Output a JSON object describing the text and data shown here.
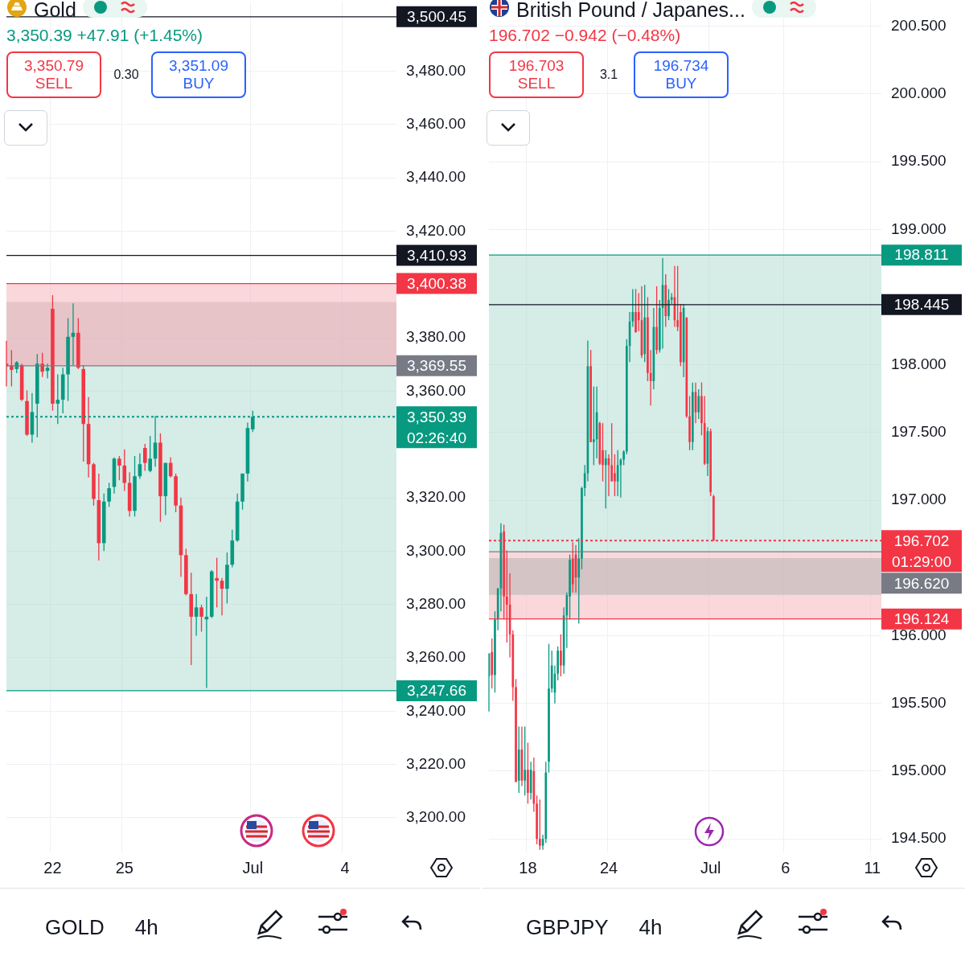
{
  "chart_data": [
    {
      "type": "candlestick",
      "title": "Gold",
      "subtitle": "3,350.39  +47.91 (+1.45%)",
      "categories": [
        null,
        null,
        null,
        null,
        null,
        null,
        null,
        null,
        null,
        "22",
        null,
        null,
        null,
        null,
        null,
        null,
        null,
        null,
        null,
        null,
        null,
        null,
        null,
        "25",
        null,
        null,
        null,
        null,
        null,
        null,
        null,
        null,
        null,
        null,
        null,
        null,
        null,
        null,
        null,
        null,
        null,
        null,
        null,
        null,
        null,
        null,
        null,
        null,
        "Jul",
        null,
        null,
        null,
        null,
        null,
        null,
        null,
        null,
        null,
        null,
        null,
        null,
        null,
        null,
        null,
        null,
        null,
        "4",
        null,
        null,
        null,
        null,
        null,
        null,
        null,
        null,
        null,
        null
      ],
      "ohlc": [
        [
          3370.3,
          3378.9,
          3361.8,
          3369.3
        ],
        [
          3369.6,
          3375.4,
          3361.8,
          3368.0
        ],
        [
          3368.3,
          3371.3,
          3366.8,
          3370.8
        ],
        [
          3369.8,
          3370.3,
          3356.3,
          3356.8
        ],
        [
          3356.3,
          3360.3,
          3343.2,
          3343.7
        ],
        [
          3343.7,
          3359.3,
          3340.7,
          3352.2
        ],
        [
          3355.3,
          3373.9,
          3342.7,
          3370.3
        ],
        [
          3370.3,
          3374.4,
          3365.3,
          3367.3
        ],
        [
          3367.6,
          3370.3,
          3364.8,
          3368.8
        ],
        [
          3390.9,
          3396.0,
          3352.7,
          3355.3
        ],
        [
          3355.3,
          3366.3,
          3347.7,
          3356.8
        ],
        [
          3356.8,
          3368.8,
          3351.7,
          3366.3
        ],
        [
          3366.3,
          3387.4,
          3356.3,
          3380.4
        ],
        [
          3380.4,
          3392.9,
          3369.8,
          3381.9
        ],
        [
          3381.9,
          3387.4,
          3368.3,
          3368.8
        ],
        [
          3368.3,
          3369.8,
          3333.6,
          3347.7
        ],
        [
          3347.7,
          3357.8,
          3327.6,
          3332.6
        ],
        [
          3332.6,
          3333.1,
          3317.1,
          3319.6
        ],
        [
          3319.1,
          3329.1,
          3296.5,
          3303.0
        ],
        [
          3303.0,
          3321.6,
          3300.0,
          3318.6
        ],
        [
          3318.6,
          3325.6,
          3316.6,
          3323.6
        ],
        [
          3324.1,
          3335.2,
          3321.6,
          3334.7
        ],
        [
          3334.7,
          3335.7,
          3326.6,
          3332.1
        ],
        [
          3332.1,
          3338.2,
          3322.6,
          3325.6
        ],
        [
          3325.6,
          3329.6,
          3313.0,
          3315.1
        ],
        [
          3315.1,
          3335.7,
          3313.0,
          3328.1
        ],
        [
          3328.1,
          3336.7,
          3327.1,
          3332.6
        ],
        [
          3338.7,
          3340.2,
          3330.1,
          3333.1
        ],
        [
          3330.1,
          3343.2,
          3329.6,
          3334.7
        ],
        [
          3334.7,
          3350.7,
          3331.6,
          3340.7
        ],
        [
          3340.7,
          3344.2,
          3311.0,
          3320.6
        ],
        [
          3320.6,
          3333.1,
          3313.5,
          3333.1
        ],
        [
          3333.1,
          3335.2,
          3327.6,
          3328.1
        ],
        [
          3328.1,
          3329.1,
          3314.6,
          3317.1
        ],
        [
          3317.1,
          3320.1,
          3290.4,
          3298.5
        ],
        [
          3298.5,
          3300.9,
          3283.4,
          3283.9
        ],
        [
          3283.9,
          3291.9,
          3257.3,
          3275.4
        ],
        [
          3275.4,
          3283.9,
          3268.3,
          3278.9
        ],
        [
          3278.9,
          3279.9,
          3269.8,
          3275.4
        ],
        [
          3274.4,
          3282.9,
          3248.7,
          3275.4
        ],
        [
          3275.4,
          3292.9,
          3274.9,
          3292.4
        ],
        [
          3289.9,
          3297.5,
          3278.9,
          3288.9
        ],
        [
          3288.9,
          3289.9,
          3275.9,
          3285.9
        ],
        [
          3285.9,
          3299.5,
          3280.4,
          3294.9
        ],
        [
          3294.9,
          3308.0,
          3293.9,
          3304.0
        ],
        [
          3304.0,
          3321.6,
          3303.5,
          3318.6
        ],
        [
          3318.6,
          3329.1,
          3315.6,
          3329.1
        ],
        [
          3329.1,
          3348.2,
          3326.1,
          3346.2
        ],
        [
          3345.7,
          3352.7,
          3344.7,
          3350.4
        ],
        null,
        null,
        null,
        null,
        null,
        null,
        null,
        null,
        null,
        null,
        null,
        null,
        null,
        null,
        null,
        null,
        null,
        null,
        null,
        null,
        null,
        null,
        null,
        null,
        null,
        null,
        null,
        null
      ],
      "colors": [
        "#f23645",
        "#f23645",
        "#089981",
        "#f23645",
        "#f23645",
        "#089981",
        "#089981",
        "#f23645",
        "#089981",
        "#f23645",
        "#089981",
        "#089981",
        "#089981",
        "#089981",
        "#f23645",
        "#f23645",
        "#f23645",
        "#f23645",
        "#f23645",
        "#089981",
        "#089981",
        "#089981",
        "#f23645",
        "#f23645",
        "#f23645",
        "#089981",
        "#089981",
        "#f23645",
        "#089981",
        "#089981",
        "#f23645",
        "#089981",
        "#f23645",
        "#f23645",
        "#f23645",
        "#f23645",
        "#f23645",
        "#089981",
        "#f23645",
        "#089981",
        "#089981",
        "#f23645",
        "#f23645",
        "#089981",
        "#089981",
        "#089981",
        "#089981",
        "#089981",
        "#089981",
        null,
        null,
        null,
        null,
        null,
        null,
        null,
        null,
        null,
        null,
        null,
        null,
        null,
        null,
        null,
        null,
        null,
        null,
        null,
        null,
        null,
        null,
        null,
        null,
        null,
        null,
        null,
        null
      ],
      "ylim": [
        3187,
        3506
      ],
      "yticks": [
        {
          "value": 3200,
          "label": "3,200.00"
        },
        {
          "value": 3220,
          "label": "3,220.00"
        },
        {
          "value": 3240,
          "label": "3,240.00"
        },
        {
          "value": 3260,
          "label": "3,260.00"
        },
        {
          "value": 3280,
          "label": "3,280.00"
        },
        {
          "value": 3300,
          "label": "3,300.00"
        },
        {
          "value": 3320,
          "label": "3,320.00"
        },
        {
          "value": 3360,
          "label": "3,360.00"
        },
        {
          "value": 3380,
          "label": "3,380.00"
        },
        {
          "value": 3420,
          "label": "3,420.00"
        },
        {
          "value": 3440,
          "label": "3,440.00"
        },
        {
          "value": 3460,
          "label": "3,460.00"
        },
        {
          "value": 3480,
          "label": "3,480.00"
        }
      ],
      "grid": true,
      "ref_lines": [
        {
          "axis": "y",
          "value": 3500.45,
          "label": "3,500.45",
          "color": "#131722",
          "line_style": "solid"
        },
        {
          "axis": "y",
          "value": 3410.93,
          "label": "3,410.93",
          "color": "#131722",
          "line_style": "solid"
        },
        {
          "axis": "y",
          "value": 3400.38,
          "label": "3,400.38",
          "color": "#f23645"
        },
        {
          "axis": "y",
          "value": 3369.55,
          "label": "3,369.55",
          "color": "#787b86"
        },
        {
          "axis": "y",
          "value": 3350.39,
          "label": "3,350.39",
          "color": "#089981",
          "line_style": "dotted"
        },
        {
          "axis": "y",
          "value": 3247.66,
          "label": "3,247.66",
          "color": "#089981"
        }
      ],
      "bands": [
        {
          "axis": "y",
          "from": 3369.55,
          "to": 3393.5,
          "color": "#b4b4b4"
        },
        {
          "axis": "y",
          "from": 3369.55,
          "to": 3400.38,
          "color": "#f5b7be"
        },
        {
          "axis": "y",
          "from": 3247.66,
          "to": 3369.55,
          "color": "#b2ddd4"
        }
      ],
      "annotations": [
        "3,350.79",
        "SELL",
        "0.30",
        "3,351.09",
        "BUY",
        "02:26:40",
        "GOLD",
        "4h"
      ]
    },
    {
      "type": "candlestick",
      "title": "British Pound / Japanes...",
      "subtitle": "196.702  −0.942 (−0.48%)",
      "categories": [
        null,
        null,
        null,
        null,
        null,
        null,
        null,
        null,
        null,
        null,
        null,
        null,
        null,
        "18",
        null,
        null,
        null,
        null,
        null,
        null,
        null,
        null,
        null,
        null,
        null,
        null,
        null,
        null,
        null,
        null,
        null,
        null,
        null,
        null,
        null,
        null,
        null,
        null,
        null,
        null,
        "24",
        null,
        null,
        null,
        null,
        null,
        null,
        null,
        null,
        null,
        null,
        null,
        null,
        null,
        null,
        null,
        null,
        null,
        null,
        null,
        null,
        null,
        null,
        null,
        null,
        null,
        null,
        null,
        null,
        null,
        null,
        null,
        null,
        null,
        "Jul",
        null,
        null,
        null,
        null,
        null,
        null,
        null,
        null,
        null,
        null,
        null,
        null,
        null,
        null,
        null,
        null,
        null,
        null,
        null,
        null,
        null,
        null,
        null,
        null,
        "6",
        null,
        null,
        null,
        null,
        null,
        null,
        null,
        null,
        null,
        null,
        null,
        null,
        null,
        null,
        null,
        null,
        null,
        null,
        null,
        null,
        null,
        null,
        null,
        null,
        null,
        null,
        null,
        null,
        "11",
        null,
        null,
        null
      ],
      "ohlc": [
        [
          195.7,
          195.87,
          195.44,
          195.87
        ],
        [
          195.88,
          195.98,
          195.61,
          195.71
        ],
        [
          195.71,
          196.18,
          195.58,
          196.12
        ],
        [
          196.12,
          196.35,
          196.04,
          196.35
        ],
        [
          196.35,
          196.83,
          196.18,
          196.76
        ],
        [
          196.77,
          196.82,
          196.12,
          196.29
        ],
        [
          196.29,
          196.63,
          195.95,
          196.23
        ],
        [
          196.23,
          196.46,
          195.84,
          196.01
        ],
        [
          196.01,
          196.04,
          195.52,
          195.62
        ],
        [
          195.62,
          195.68,
          194.92,
          194.92
        ],
        [
          194.93,
          195.33,
          194.84,
          195.16
        ],
        [
          195.16,
          195.33,
          194.89,
          194.93
        ],
        [
          194.93,
          195.33,
          194.82,
          195.01
        ],
        [
          195.01,
          195.21,
          194.76,
          194.84
        ],
        [
          194.84,
          195.07,
          194.79,
          195.01
        ],
        [
          195.0,
          195.1,
          194.7,
          194.76
        ],
        [
          194.76,
          194.82,
          194.46,
          194.5
        ],
        [
          194.5,
          194.79,
          194.42,
          194.45
        ],
        [
          194.45,
          194.53,
          194.42,
          194.5
        ],
        [
          194.5,
          195.07,
          194.47,
          194.99
        ],
        [
          195.07,
          195.94,
          194.99,
          195.61
        ],
        [
          195.61,
          195.89,
          195.58,
          195.78
        ],
        [
          195.58,
          195.78,
          195.5,
          195.72
        ],
        [
          195.72,
          195.92,
          195.67,
          195.89
        ],
        [
          195.89,
          196.01,
          195.7,
          195.78
        ],
        [
          195.78,
          196.21,
          195.72,
          196.15
        ],
        [
          196.15,
          196.32,
          195.91,
          196.3
        ],
        [
          196.29,
          196.6,
          196.12,
          196.56
        ],
        [
          196.57,
          196.69,
          196.32,
          196.38
        ],
        [
          196.6,
          196.67,
          196.32,
          196.43
        ],
        [
          196.43,
          196.72,
          196.09,
          196.57
        ],
        [
          196.57,
          197.1,
          196.49,
          197.09
        ],
        [
          197.09,
          197.26,
          197.03,
          197.2
        ],
        [
          197.2,
          198.18,
          197.14,
          197.99
        ],
        [
          197.99,
          198.11,
          197.43,
          197.43
        ],
        [
          197.43,
          197.84,
          197.26,
          197.45
        ],
        [
          197.45,
          197.84,
          197.31,
          197.65
        ],
        [
          197.57,
          197.58,
          197.26,
          197.27
        ],
        [
          197.37,
          197.57,
          197.14,
          197.26
        ],
        [
          197.26,
          197.37,
          196.94,
          197.31
        ],
        [
          197.31,
          197.34,
          197.03,
          197.26
        ],
        [
          197.26,
          197.57,
          197.14,
          197.14
        ],
        [
          197.2,
          197.34,
          197.03,
          197.14
        ],
        [
          197.14,
          197.37,
          197.03,
          197.26
        ],
        [
          197.26,
          197.31,
          197.02,
          197.3
        ],
        [
          197.3,
          197.37,
          197.26,
          197.36
        ],
        [
          197.36,
          198.19,
          197.34,
          198.14
        ],
        [
          198.14,
          198.39,
          198.02,
          198.32
        ],
        [
          198.32,
          198.56,
          198.28,
          198.39
        ],
        [
          198.39,
          198.56,
          198.24,
          198.24
        ],
        [
          198.39,
          198.53,
          198.25,
          198.33
        ],
        [
          198.33,
          198.58,
          198.05,
          198.07
        ],
        [
          198.08,
          198.59,
          198.02,
          198.35
        ],
        [
          198.35,
          198.5,
          197.88,
          197.94
        ],
        [
          197.94,
          198.11,
          197.7,
          197.88
        ],
        [
          197.88,
          198.42,
          197.82,
          198.28
        ],
        [
          198.28,
          198.58,
          198.08,
          198.11
        ],
        [
          198.11,
          198.48,
          198.09,
          198.42
        ],
        [
          198.42,
          198.79,
          198.12,
          198.59
        ],
        [
          198.59,
          198.67,
          198.28,
          198.36
        ],
        [
          198.36,
          198.56,
          198.33,
          198.48
        ],
        [
          198.48,
          198.53,
          198.45,
          198.5
        ],
        [
          198.5,
          198.73,
          198.28,
          198.33
        ],
        [
          198.33,
          198.73,
          198.25,
          198.28
        ],
        [
          198.39,
          198.45,
          197.99,
          198.02
        ],
        [
          198.02,
          198.45,
          197.91,
          198.42
        ],
        [
          198.35,
          198.35,
          197.61,
          197.62
        ],
        [
          197.62,
          197.77,
          197.37,
          197.43
        ],
        [
          197.43,
          197.87,
          197.37,
          197.8
        ],
        [
          197.8,
          197.87,
          197.57,
          197.65
        ],
        [
          197.65,
          197.82,
          197.6,
          197.77
        ],
        [
          197.77,
          197.87,
          197.48,
          197.57
        ],
        [
          197.57,
          197.77,
          197.26,
          197.27
        ],
        [
          197.27,
          197.54,
          197.18,
          197.51
        ],
        [
          197.51,
          197.53,
          197.03,
          197.06
        ],
        [
          197.03,
          197.04,
          196.702,
          196.702
        ],
        null,
        null,
        null,
        null,
        null,
        null,
        null,
        null,
        null,
        null,
        null,
        null,
        null,
        null,
        null,
        null,
        null,
        null,
        null,
        null,
        null,
        null,
        null,
        null,
        null,
        null,
        null,
        null,
        null,
        null,
        null,
        null,
        null,
        null,
        null,
        null,
        null,
        null,
        null,
        null,
        null,
        null,
        null,
        null,
        null,
        null,
        null,
        null,
        null,
        null,
        null,
        null,
        null,
        null,
        null,
        null
      ],
      "colors": [
        "#089981",
        "#f23645",
        "#089981",
        "#089981",
        "#089981",
        "#f23645",
        "#f23645",
        "#f23645",
        "#f23645",
        "#f23645",
        "#089981",
        "#f23645",
        "#089981",
        "#f23645",
        "#089981",
        "#f23645",
        "#f23645",
        "#f23645",
        "#089981",
        "#089981",
        "#089981",
        "#089981",
        "#089981",
        "#089981",
        "#f23645",
        "#089981",
        "#089981",
        "#089981",
        "#f23645",
        "#f23645",
        "#089981",
        "#089981",
        "#089981",
        "#089981",
        "#f23645",
        "#089981",
        "#089981",
        "#f23645",
        "#f23645",
        "#089981",
        "#f23645",
        "#f23645",
        "#f23645",
        "#089981",
        "#089981",
        "#089981",
        "#089981",
        "#089981",
        "#089981",
        "#f23645",
        "#f23645",
        "#f23645",
        "#089981",
        "#f23645",
        "#f23645",
        "#089981",
        "#f23645",
        "#089981",
        "#089981",
        "#f23645",
        "#089981",
        "#089981",
        "#f23645",
        "#f23645",
        "#f23645",
        "#089981",
        "#f23645",
        "#f23645",
        "#089981",
        "#f23645",
        "#089981",
        "#f23645",
        "#f23645",
        "#089981",
        "#f23645",
        "#f23645",
        null,
        null,
        null,
        null,
        null,
        null,
        null,
        null,
        null,
        null,
        null,
        null,
        null,
        null,
        null,
        null,
        null,
        null,
        null,
        null,
        null,
        null,
        null,
        null,
        null,
        null,
        null,
        null,
        null,
        null,
        null,
        null,
        null,
        null,
        null,
        null,
        null,
        null,
        null,
        null,
        null,
        null,
        null,
        null,
        null,
        null,
        null,
        null,
        null,
        null,
        null,
        null,
        null,
        null,
        null,
        null
      ],
      "ylim": [
        194.4,
        200.68
      ],
      "yticks": [
        {
          "value": 194.5,
          "label": "194.500"
        },
        {
          "value": 195,
          "label": "195.000"
        },
        {
          "value": 195.5,
          "label": "195.500"
        },
        {
          "value": 196,
          "label": "196.000"
        },
        {
          "value": 197,
          "label": "197.000"
        },
        {
          "value": 197.5,
          "label": "197.500"
        },
        {
          "value": 198,
          "label": "198.000"
        },
        {
          "value": 199,
          "label": "199.000"
        },
        {
          "value": 199.5,
          "label": "199.500"
        },
        {
          "value": 200,
          "label": "200.000"
        },
        {
          "value": 200.5,
          "label": "200.500"
        }
      ],
      "grid": true,
      "ref_lines": [
        {
          "axis": "y",
          "value": 198.811,
          "label": "198.811",
          "color": "#089981"
        },
        {
          "axis": "y",
          "value": 198.445,
          "label": "198.445",
          "color": "#131722",
          "line_style": "solid"
        },
        {
          "axis": "y",
          "value": 196.702,
          "label": "196.702",
          "color": "#f23645",
          "line_style": "dotted"
        },
        {
          "axis": "y",
          "value": 196.62,
          "label": "196.620",
          "color": "#787b86"
        },
        {
          "axis": "y",
          "value": 196.124,
          "label": "196.124",
          "color": "#f23645"
        }
      ],
      "bands": [
        {
          "axis": "y",
          "from": 196.62,
          "to": 198.811,
          "color": "#b2ddd4"
        },
        {
          "axis": "y",
          "from": 196.124,
          "to": 196.62,
          "color": "#f5b7be"
        },
        {
          "axis": "y",
          "from": 196.301,
          "to": 196.574,
          "color": "#b4b4b4"
        }
      ],
      "annotations": [
        "196.703",
        "SELL",
        "3.1",
        "196.734",
        "BUY",
        "01:29:00",
        "GBPJPY",
        "4h"
      ]
    }
  ]
}
